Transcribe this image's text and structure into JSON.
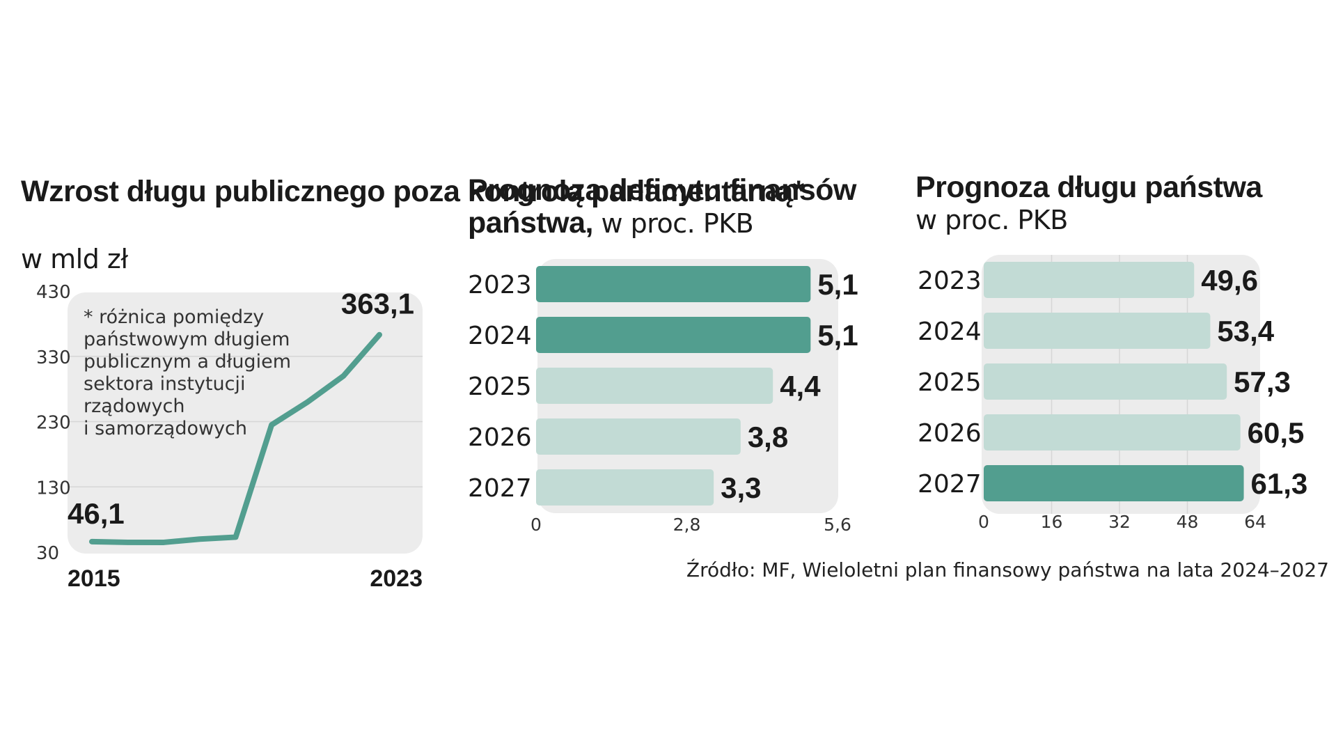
{
  "colors": {
    "dark": "#529e8f",
    "light": "#c2dbd5",
    "panel": "#ececec",
    "grid": "#d6d6d6"
  },
  "chart_data": [
    {
      "type": "line",
      "title": "Wzrost długu publicznego poza kontrolą parlamentarną*",
      "subtitle": "w mld zł",
      "x": [
        2015,
        2016,
        2017,
        2018,
        2019,
        2020,
        2021,
        2022,
        2023
      ],
      "values": [
        46.1,
        45,
        45,
        50,
        53,
        225,
        260,
        300,
        363.1
      ],
      "ylim": [
        30,
        430
      ],
      "yticks": [
        "430",
        "330",
        "230",
        "130",
        "30"
      ],
      "xtick_labels": [
        "2015",
        "2023"
      ],
      "start_label": "46,1",
      "end_label": "363,1",
      "note": [
        "* różnica pomiędzy",
        "państwowym długiem",
        "publicznym a długiem",
        "sektora instytucji",
        "rządowych",
        "i samorządowych"
      ]
    },
    {
      "type": "bar",
      "orientation": "horizontal",
      "title": "Prognoza deficytu finansów",
      "title2": "państwa,",
      "unit": "w proc. PKB",
      "categories": [
        "2023",
        "2024",
        "2025",
        "2026",
        "2027"
      ],
      "values": [
        5.1,
        5.1,
        4.4,
        3.8,
        3.3
      ],
      "labels": [
        "5,1",
        "5,1",
        "4,4",
        "3,8",
        "3,3"
      ],
      "highlight": [
        true,
        true,
        false,
        false,
        false
      ],
      "xlim": [
        0,
        5.6
      ],
      "xticks": [
        0,
        2.8,
        5.6
      ],
      "xtick_labels": [
        "0",
        "2,8",
        "5,6"
      ]
    },
    {
      "type": "bar",
      "orientation": "horizontal",
      "title": "Prognoza długu państwa",
      "unit": "w proc. PKB",
      "categories": [
        "2023",
        "2024",
        "2025",
        "2026",
        "2027"
      ],
      "values": [
        49.6,
        53.4,
        57.3,
        60.5,
        61.3
      ],
      "labels": [
        "49,6",
        "53,4",
        "57,3",
        "60,5",
        "61,3"
      ],
      "highlight": [
        false,
        false,
        false,
        false,
        true
      ],
      "xlim": [
        0,
        64
      ],
      "xticks": [
        0,
        16,
        32,
        48,
        64
      ],
      "xtick_labels": [
        "0",
        "16",
        "32",
        "48",
        "64"
      ]
    }
  ],
  "source": "Źródło: MF, Wieloletni plan finansowy państwa na lata 2024–2027"
}
